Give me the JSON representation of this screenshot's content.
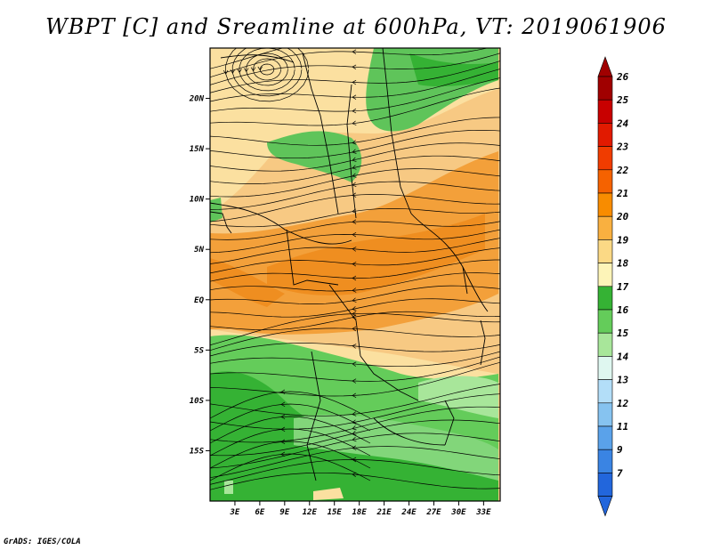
{
  "title": "WBPT [C] and Sreamline at 600hPa, VT: 2019061906",
  "credit": "GrADS: IGES/COLA",
  "map": {
    "lat_range": [
      -20,
      25
    ],
    "lon_range": [
      0,
      35
    ],
    "lat_labels": [
      "20N",
      "15N",
      "10N",
      "5N",
      "EQ",
      "5S",
      "10S",
      "15S"
    ],
    "lat_values": [
      20,
      15,
      10,
      5,
      0,
      -5,
      -10,
      -15
    ],
    "lon_labels": [
      "3E",
      "6E",
      "9E",
      "12E",
      "15E",
      "18E",
      "21E",
      "24E",
      "27E",
      "30E",
      "33E"
    ],
    "lon_values": [
      3,
      6,
      9,
      12,
      15,
      18,
      21,
      24,
      27,
      30,
      33
    ]
  },
  "colorbar": {
    "levels": [
      "26",
      "25",
      "24",
      "23",
      "22",
      "21",
      "20",
      "19",
      "18",
      "17",
      "16",
      "15",
      "14",
      "13",
      "12",
      "11",
      "9",
      "7"
    ],
    "colors": [
      "#a00000",
      "#c80000",
      "#e11a00",
      "#f03c00",
      "#f56200",
      "#f88c00",
      "#f9b040",
      "#fbd985",
      "#fdf4b8",
      "#35b234",
      "#64cc5a",
      "#a8e69a",
      "#dff7f0",
      "#b3def8",
      "#86c3f0",
      "#5aa2ea",
      "#3a84e3",
      "#2266dc"
    ],
    "top_arrow_color": "#a00000",
    "bottom_arrow_color": "#2266dc"
  }
}
